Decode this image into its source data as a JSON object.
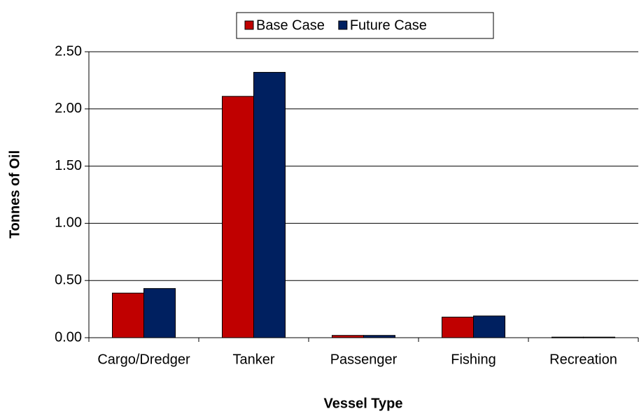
{
  "chart_data": {
    "type": "bar",
    "xlabel": "Vessel Type",
    "ylabel": "Tonnes of Oil",
    "categories": [
      "Cargo/Dredger",
      "Tanker",
      "Passenger",
      "Fishing",
      "Recreation"
    ],
    "series": [
      {
        "name": "Base Case",
        "color": "#c00000",
        "values": [
          0.39,
          2.11,
          0.02,
          0.18,
          0.005
        ]
      },
      {
        "name": "Future Case",
        "color": "#002060",
        "values": [
          0.43,
          2.32,
          0.02,
          0.19,
          0.005
        ]
      }
    ],
    "ylim": [
      0,
      2.5
    ],
    "yticks": [
      {
        "value": 0,
        "label": "0.00"
      },
      {
        "value": 0.5,
        "label": "0.50"
      },
      {
        "value": 1,
        "label": "1.00"
      },
      {
        "value": 1.5,
        "label": "1.50"
      },
      {
        "value": 2,
        "label": "2.00"
      },
      {
        "value": 2.5,
        "label": "2.50"
      }
    ],
    "grid": true,
    "legend": "top"
  }
}
